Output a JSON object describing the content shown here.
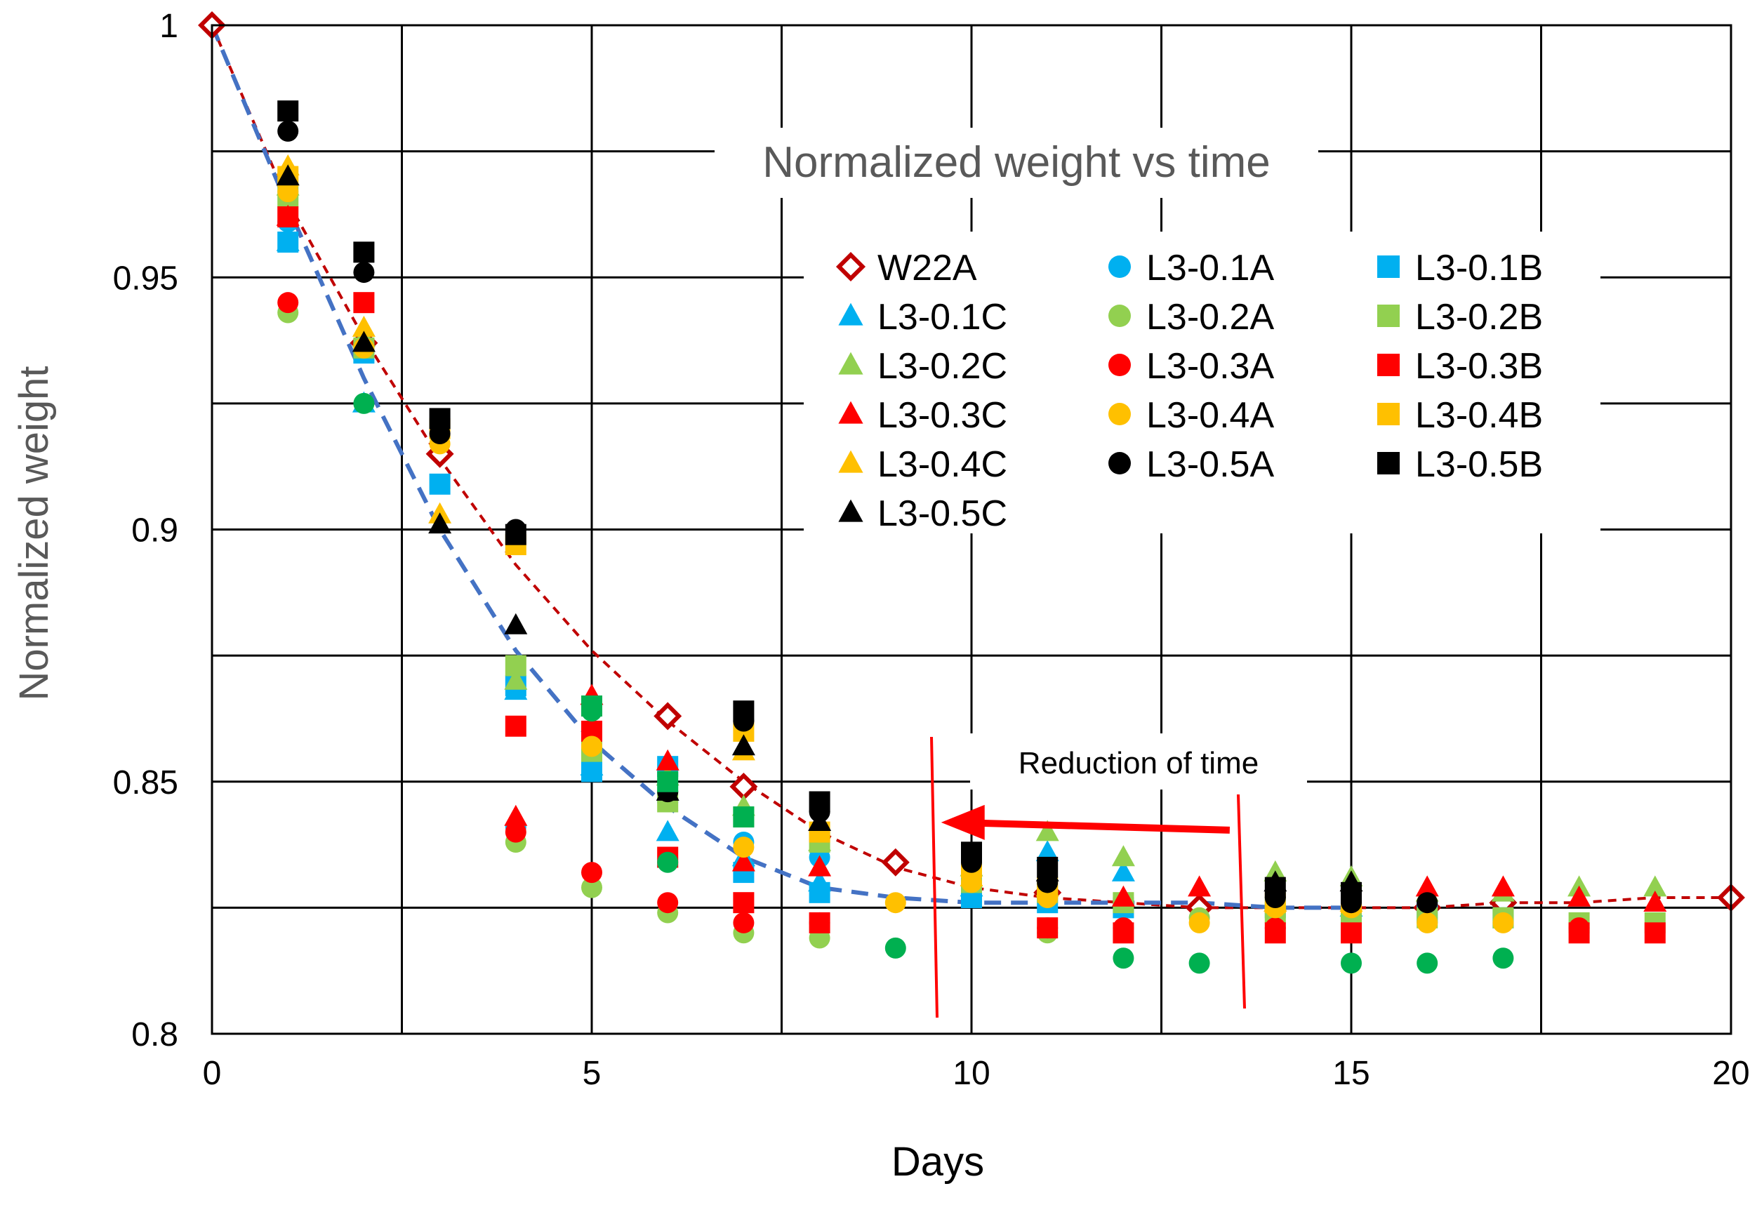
{
  "chart_data": {
    "type": "scatter",
    "title": "Normalized weight vs time",
    "xlabel": "Days",
    "ylabel": "Normalized weight",
    "xlim": [
      0,
      20
    ],
    "ylim": [
      0.8,
      1.0
    ],
    "x_ticks": [
      "0",
      "5",
      "10",
      "15",
      "20"
    ],
    "y_ticks": [
      "0.8",
      "0.85",
      "0.9",
      "0.95",
      "1"
    ],
    "grid": true,
    "legend_position": "upper-center",
    "annotation": {
      "text": "Reduction  of time",
      "arrow_from_day": 13.4,
      "arrow_to_day": 9.6,
      "at_weight": 0.8415,
      "color": "#ff0000"
    },
    "trend_lines": [
      {
        "series": "W22A",
        "color": "#c00000",
        "style": "dashed",
        "x": [
          0,
          1,
          2,
          3,
          4,
          5,
          6,
          7,
          8,
          9,
          10,
          11,
          12,
          13,
          14,
          15,
          16,
          17,
          18,
          19,
          20
        ],
        "y": [
          1.0,
          0.965,
          0.938,
          0.914,
          0.893,
          0.876,
          0.862,
          0.85,
          0.84,
          0.833,
          0.829,
          0.827,
          0.826,
          0.825,
          0.825,
          0.825,
          0.825,
          0.826,
          0.826,
          0.827,
          0.827
        ]
      },
      {
        "series": "L3 (all)",
        "color": "#4472c4",
        "style": "dashed",
        "x": [
          0,
          1,
          2,
          3,
          4,
          5,
          6,
          7,
          8,
          9,
          10,
          11,
          12,
          13,
          14,
          15
        ],
        "y": [
          1.0,
          0.964,
          0.93,
          0.9,
          0.876,
          0.858,
          0.845,
          0.835,
          0.829,
          0.827,
          0.826,
          0.826,
          0.826,
          0.826,
          0.825,
          0.825
        ]
      }
    ],
    "series": [
      {
        "name": "W22A",
        "marker": "diamond-open",
        "color": "#c00000",
        "x": [
          0,
          2,
          3,
          6,
          7,
          9,
          11,
          13,
          16,
          17,
          20
        ],
        "y": [
          1.0,
          0.937,
          0.915,
          0.863,
          0.849,
          0.834,
          0.828,
          0.825,
          0.825,
          0.826,
          0.827
        ]
      },
      {
        "name": "L3-0.1A",
        "marker": "circle",
        "color": "#00b0f0",
        "x": [
          1,
          4,
          6,
          7,
          8,
          10,
          11,
          12
        ],
        "y": [
          0.961,
          0.841,
          0.846,
          0.838,
          0.835,
          0.829,
          0.828,
          0.826
        ]
      },
      {
        "name": "L3-0.1B",
        "marker": "square",
        "color": "#00b0f0",
        "x": [
          1,
          2,
          3,
          4,
          5,
          6,
          7,
          8,
          10,
          11,
          12,
          14,
          15,
          16,
          17
        ],
        "y": [
          0.957,
          0.935,
          0.909,
          0.869,
          0.852,
          0.853,
          0.832,
          0.828,
          0.827,
          0.826,
          0.825,
          0.825,
          0.825,
          0.824,
          0.823
        ]
      },
      {
        "name": "L3-0.1C",
        "marker": "triangle",
        "color": "#00b0f0",
        "x": [
          1,
          2,
          4,
          5,
          6,
          7,
          8,
          10,
          11,
          12,
          14,
          15
        ],
        "y": [
          0.957,
          0.925,
          0.868,
          0.853,
          0.84,
          0.835,
          0.83,
          0.829,
          0.836,
          0.832,
          0.826,
          0.825
        ]
      },
      {
        "name": "L3-0.2A",
        "marker": "circle",
        "color": "#92d050",
        "x": [
          1,
          4,
          5,
          6,
          7,
          8,
          11,
          13,
          15,
          16,
          17
        ],
        "y": [
          0.943,
          0.838,
          0.829,
          0.824,
          0.82,
          0.819,
          0.82,
          0.823,
          0.824,
          0.823,
          0.823
        ]
      },
      {
        "name": "L3-0.2B",
        "marker": "square",
        "color": "#92d050",
        "x": [
          1,
          2,
          4,
          5,
          6,
          7,
          8,
          10,
          11,
          12,
          14,
          15,
          16,
          17,
          18,
          19
        ],
        "y": [
          0.966,
          0.936,
          0.873,
          0.856,
          0.846,
          0.843,
          0.838,
          0.83,
          0.828,
          0.826,
          0.824,
          0.824,
          0.823,
          0.823,
          0.822,
          0.822
        ]
      },
      {
        "name": "L3-0.2C",
        "marker": "triangle",
        "color": "#92d050",
        "x": [
          1,
          2,
          4,
          6,
          7,
          8,
          10,
          11,
          12,
          14,
          15,
          16,
          17,
          18,
          19
        ],
        "y": [
          0.968,
          0.938,
          0.87,
          0.851,
          0.845,
          0.838,
          0.833,
          0.84,
          0.835,
          0.832,
          0.831,
          0.828,
          0.828,
          0.829,
          0.829
        ]
      },
      {
        "name": "L3-0.3A",
        "marker": "circle",
        "color": "#ff0000",
        "x": [
          1,
          4,
          5,
          6,
          7,
          8,
          11,
          12,
          14,
          18
        ],
        "y": [
          0.945,
          0.84,
          0.832,
          0.826,
          0.822,
          0.822,
          0.821,
          0.821,
          0.821,
          0.821
        ]
      },
      {
        "name": "L3-0.3B",
        "marker": "square",
        "color": "#ff0000",
        "x": [
          1,
          2,
          4,
          5,
          6,
          7,
          8,
          11,
          12,
          14,
          15,
          18,
          19
        ],
        "y": [
          0.962,
          0.945,
          0.861,
          0.86,
          0.835,
          0.826,
          0.822,
          0.821,
          0.82,
          0.82,
          0.82,
          0.82,
          0.82
        ]
      },
      {
        "name": "L3-0.3C",
        "marker": "triangle",
        "color": "#ff0000",
        "x": [
          1,
          4,
          5,
          6,
          7,
          8,
          12,
          13,
          14,
          16,
          17,
          18,
          19
        ],
        "y": [
          0.962,
          0.843,
          0.867,
          0.854,
          0.834,
          0.833,
          0.827,
          0.829,
          0.826,
          0.829,
          0.829,
          0.827,
          0.826
        ]
      },
      {
        "name": "L3-0.4A",
        "marker": "circle",
        "color": "#ffc000",
        "x": [
          1,
          2,
          3,
          5,
          7,
          8,
          9,
          10,
          11,
          13,
          14,
          15,
          16,
          17
        ],
        "y": [
          0.967,
          0.936,
          0.917,
          0.857,
          0.837,
          0.84,
          0.826,
          0.83,
          0.827,
          0.822,
          0.825,
          0.825,
          0.822,
          0.822
        ]
      },
      {
        "name": "L3-0.4B",
        "marker": "square",
        "color": "#ffc000",
        "x": [
          1,
          3,
          4,
          7,
          8,
          10,
          11,
          14,
          15
        ],
        "y": [
          0.97,
          0.92,
          0.897,
          0.86,
          0.84,
          0.833,
          0.829,
          0.826,
          0.826
        ]
      },
      {
        "name": "L3-0.4C",
        "marker": "triangle",
        "color": "#ffc000",
        "x": [
          1,
          2,
          3,
          7,
          10,
          11,
          14,
          15
        ],
        "y": [
          0.972,
          0.94,
          0.903,
          0.856,
          0.831,
          0.829,
          0.826,
          0.826
        ]
      },
      {
        "name": "L3-0.5A",
        "marker": "circle",
        "color": "#000000",
        "x": [
          1,
          2,
          3,
          4,
          6,
          7,
          8,
          10,
          11,
          14,
          15,
          16
        ],
        "y": [
          0.979,
          0.951,
          0.919,
          0.9,
          0.848,
          0.862,
          0.844,
          0.834,
          0.83,
          0.827,
          0.826,
          0.826
        ]
      },
      {
        "name": "L3-0.5B",
        "marker": "square",
        "color": "#000000",
        "x": [
          1,
          2,
          3,
          4,
          7,
          8,
          10,
          11,
          14,
          15
        ],
        "y": [
          0.983,
          0.955,
          0.922,
          0.899,
          0.864,
          0.846,
          0.836,
          0.833,
          0.829,
          0.828
        ]
      },
      {
        "name": "L3-0.5C",
        "marker": "triangle",
        "color": "#000000",
        "x": [
          1,
          2,
          3,
          4,
          6,
          7,
          8,
          11,
          14,
          15
        ],
        "y": [
          0.97,
          0.937,
          0.901,
          0.881,
          0.848,
          0.857,
          0.842,
          0.832,
          0.83,
          0.83
        ]
      },
      {
        "name": "",
        "marker": "circle",
        "color": "#00b050",
        "x": [
          2,
          5,
          6,
          9,
          12,
          13,
          15,
          16,
          17
        ],
        "y": [
          0.925,
          0.864,
          0.834,
          0.817,
          0.815,
          0.814,
          0.814,
          0.814,
          0.815
        ]
      },
      {
        "name": "",
        "marker": "square",
        "color": "#00b050",
        "x": [
          5,
          6,
          7
        ],
        "y": [
          0.865,
          0.85,
          0.843
        ]
      }
    ],
    "legend_order": [
      "W22A",
      "L3-0.1A",
      "L3-0.1B",
      "L3-0.1C",
      "L3-0.2A",
      "L3-0.2B",
      "L3-0.2C",
      "L3-0.3A",
      "L3-0.3B",
      "L3-0.3C",
      "L3-0.4A",
      "L3-0.4B",
      "L3-0.4C",
      "L3-0.5A",
      "L3-0.5B",
      "L3-0.5C"
    ]
  }
}
